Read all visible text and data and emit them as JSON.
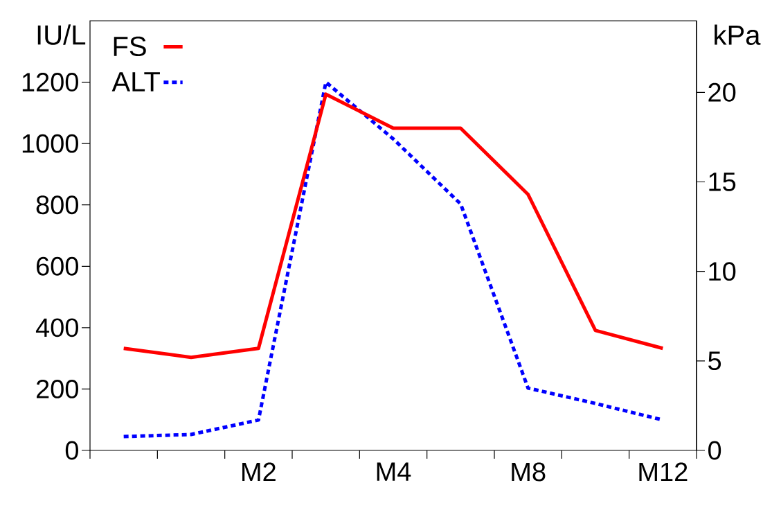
{
  "chart_data": {
    "type": "line",
    "ylabel": "IU/L",
    "y2label": "kPa",
    "categories": [
      null,
      null,
      "M2",
      null,
      "M4",
      null,
      "M8",
      null,
      "M12"
    ],
    "ylim": [
      0,
      1400
    ],
    "yticks": [
      0,
      200,
      400,
      600,
      800,
      1000,
      1200
    ],
    "y2lim": [
      0,
      24
    ],
    "y2ticks": [
      0,
      5,
      10,
      15,
      20
    ],
    "series": [
      {
        "name": "FS",
        "color": "#ff0000",
        "axis": "y2",
        "line_style": "solid",
        "values": [
          5.7,
          5.2,
          5.7,
          19.9,
          18,
          18,
          14.3,
          6.7,
          5.7
        ]
      },
      {
        "name": "ALT",
        "color": "#0000ff",
        "axis": "y",
        "line_style": "dotted",
        "values": [
          45,
          52,
          99,
          1200,
          1015,
          803,
          203,
          153,
          99
        ]
      }
    ],
    "legend": "top left",
    "grid": false,
    "marker": "none"
  }
}
